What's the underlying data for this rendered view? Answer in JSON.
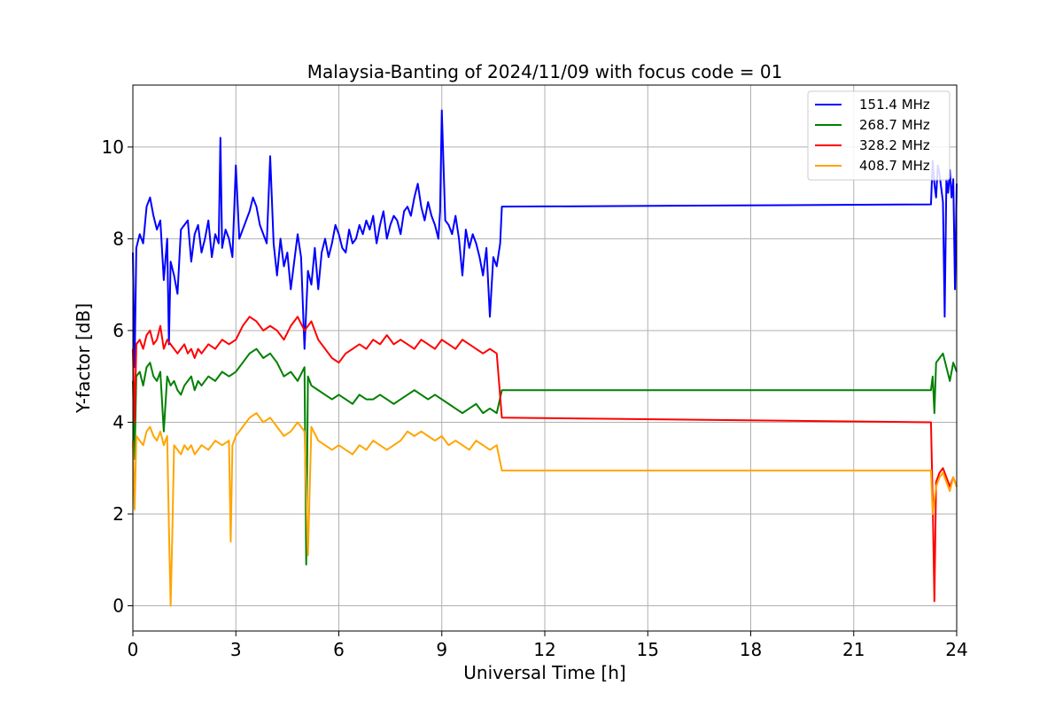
{
  "chart_data": {
    "type": "line",
    "title": "Malaysia-Banting of 2024/11/09 with focus code = 01",
    "xlabel": "Universal Time [h]",
    "ylabel": "Y-factor [dB]",
    "xlim": [
      0,
      24
    ],
    "ylim": [
      -0.55,
      11.35
    ],
    "xticks": [
      0,
      3,
      6,
      9,
      12,
      15,
      18,
      21,
      24
    ],
    "xtick_labels": [
      "0",
      "3",
      "6",
      "9",
      "12",
      "15",
      "18",
      "21",
      "24"
    ],
    "yticks": [
      0,
      2,
      4,
      6,
      8,
      10
    ],
    "ytick_labels": [
      "0",
      "2",
      "4",
      "6",
      "8",
      "10"
    ],
    "grid": true,
    "legend_position": "top-right",
    "series": [
      {
        "name": "151.4 MHz",
        "color": "#0000ff",
        "x": [
          0.0,
          0.05,
          0.1,
          0.2,
          0.3,
          0.4,
          0.5,
          0.6,
          0.7,
          0.8,
          0.9,
          1.0,
          1.05,
          1.1,
          1.2,
          1.3,
          1.4,
          1.5,
          1.6,
          1.7,
          1.8,
          1.9,
          2.0,
          2.1,
          2.2,
          2.3,
          2.4,
          2.5,
          2.55,
          2.6,
          2.7,
          2.8,
          2.9,
          3.0,
          3.1,
          3.2,
          3.3,
          3.4,
          3.5,
          3.6,
          3.7,
          3.8,
          3.9,
          4.0,
          4.1,
          4.2,
          4.3,
          4.4,
          4.5,
          4.6,
          4.7,
          4.8,
          4.9,
          5.0,
          5.1,
          5.2,
          5.3,
          5.4,
          5.5,
          5.6,
          5.7,
          5.8,
          5.9,
          6.0,
          6.1,
          6.2,
          6.3,
          6.4,
          6.5,
          6.6,
          6.7,
          6.8,
          6.9,
          7.0,
          7.1,
          7.2,
          7.3,
          7.4,
          7.5,
          7.6,
          7.7,
          7.8,
          7.9,
          8.0,
          8.1,
          8.2,
          8.3,
          8.4,
          8.5,
          8.6,
          8.7,
          8.8,
          8.9,
          8.95,
          9.0,
          9.1,
          9.2,
          9.3,
          9.4,
          9.5,
          9.6,
          9.7,
          9.8,
          9.9,
          10.0,
          10.1,
          10.2,
          10.3,
          10.4,
          10.5,
          10.6,
          10.7,
          10.75,
          23.25,
          23.3,
          23.35,
          23.4,
          23.45,
          23.5,
          23.55,
          23.6,
          23.65,
          23.7,
          23.75,
          23.8,
          23.85,
          23.9,
          23.95,
          24.0
        ],
        "values": [
          7.7,
          5.2,
          7.8,
          8.1,
          7.9,
          8.7,
          8.9,
          8.5,
          8.2,
          8.4,
          7.1,
          8.0,
          5.7,
          7.5,
          7.2,
          6.8,
          8.2,
          8.3,
          8.4,
          7.5,
          8.1,
          8.3,
          7.7,
          8.0,
          8.4,
          7.6,
          8.1,
          7.9,
          10.2,
          7.8,
          8.2,
          8.0,
          7.6,
          9.6,
          8.0,
          8.2,
          8.4,
          8.6,
          8.9,
          8.7,
          8.3,
          8.1,
          7.9,
          9.8,
          7.9,
          7.2,
          8.0,
          7.4,
          7.7,
          6.9,
          7.5,
          8.1,
          7.6,
          5.6,
          7.3,
          7.0,
          7.8,
          6.9,
          7.7,
          8.0,
          7.6,
          7.9,
          8.3,
          8.1,
          7.8,
          7.7,
          8.2,
          7.9,
          8.0,
          8.3,
          8.1,
          8.4,
          8.2,
          8.5,
          7.9,
          8.3,
          8.6,
          8.0,
          8.3,
          8.5,
          8.4,
          8.1,
          8.6,
          8.7,
          8.5,
          8.9,
          9.2,
          8.7,
          8.4,
          8.8,
          8.5,
          8.3,
          8.0,
          8.6,
          10.8,
          8.4,
          8.3,
          8.1,
          8.5,
          8.0,
          7.2,
          8.2,
          7.8,
          8.1,
          7.9,
          7.6,
          7.2,
          7.8,
          6.3,
          7.6,
          7.4,
          7.9,
          8.7,
          8.75,
          9.7,
          9.2,
          8.9,
          9.6,
          9.4,
          9.1,
          8.8,
          6.3,
          9.3,
          9.0,
          9.5,
          8.9,
          9.3,
          6.9,
          9.2
        ]
      },
      {
        "name": "268.7 MHz",
        "color": "#008000",
        "x": [
          0.0,
          0.05,
          0.1,
          0.2,
          0.3,
          0.4,
          0.5,
          0.6,
          0.7,
          0.8,
          0.9,
          1.0,
          1.1,
          1.2,
          1.3,
          1.4,
          1.5,
          1.6,
          1.7,
          1.8,
          1.9,
          2.0,
          2.2,
          2.4,
          2.6,
          2.8,
          3.0,
          3.2,
          3.4,
          3.6,
          3.8,
          4.0,
          4.2,
          4.4,
          4.6,
          4.8,
          5.0,
          5.05,
          5.1,
          5.2,
          5.4,
          5.6,
          5.8,
          6.0,
          6.2,
          6.4,
          6.6,
          6.8,
          7.0,
          7.2,
          7.4,
          7.6,
          7.8,
          8.0,
          8.2,
          8.4,
          8.6,
          8.8,
          9.0,
          9.2,
          9.4,
          9.6,
          9.8,
          10.0,
          10.2,
          10.4,
          10.6,
          10.75,
          23.25,
          23.3,
          23.35,
          23.4,
          23.5,
          23.6,
          23.7,
          23.8,
          23.9,
          24.0
        ],
        "values": [
          4.9,
          3.2,
          5.0,
          5.1,
          4.8,
          5.2,
          5.3,
          5.0,
          4.9,
          5.1,
          3.8,
          5.0,
          4.8,
          4.9,
          4.7,
          4.6,
          4.8,
          4.9,
          5.0,
          4.7,
          4.9,
          4.8,
          5.0,
          4.9,
          5.1,
          5.0,
          5.1,
          5.3,
          5.5,
          5.6,
          5.4,
          5.5,
          5.3,
          5.0,
          5.1,
          4.9,
          5.2,
          0.9,
          5.0,
          4.8,
          4.7,
          4.6,
          4.5,
          4.6,
          4.5,
          4.4,
          4.6,
          4.5,
          4.5,
          4.6,
          4.5,
          4.4,
          4.5,
          4.6,
          4.7,
          4.6,
          4.5,
          4.6,
          4.5,
          4.4,
          4.3,
          4.2,
          4.3,
          4.4,
          4.2,
          4.3,
          4.2,
          4.7,
          4.7,
          5.0,
          4.2,
          5.3,
          5.4,
          5.5,
          5.2,
          4.9,
          5.3,
          5.1
        ]
      },
      {
        "name": "328.2 MHz",
        "color": "#ff0000",
        "x": [
          0.0,
          0.05,
          0.1,
          0.2,
          0.3,
          0.4,
          0.5,
          0.6,
          0.7,
          0.8,
          0.9,
          1.0,
          1.1,
          1.2,
          1.3,
          1.4,
          1.5,
          1.6,
          1.7,
          1.8,
          1.9,
          2.0,
          2.2,
          2.4,
          2.6,
          2.8,
          3.0,
          3.2,
          3.4,
          3.6,
          3.8,
          4.0,
          4.2,
          4.4,
          4.6,
          4.8,
          5.0,
          5.2,
          5.4,
          5.6,
          5.8,
          6.0,
          6.2,
          6.4,
          6.6,
          6.8,
          7.0,
          7.2,
          7.4,
          7.6,
          7.8,
          8.0,
          8.2,
          8.4,
          8.6,
          8.8,
          9.0,
          9.2,
          9.4,
          9.6,
          9.8,
          10.0,
          10.2,
          10.4,
          10.6,
          10.75,
          23.25,
          23.3,
          23.35,
          23.4,
          23.5,
          23.6,
          23.7,
          23.8,
          23.9,
          24.0
        ],
        "values": [
          5.6,
          4.0,
          5.7,
          5.8,
          5.6,
          5.9,
          6.0,
          5.7,
          5.8,
          6.1,
          5.6,
          5.8,
          5.7,
          5.6,
          5.5,
          5.6,
          5.7,
          5.5,
          5.6,
          5.4,
          5.6,
          5.5,
          5.7,
          5.6,
          5.8,
          5.7,
          5.8,
          6.1,
          6.3,
          6.2,
          6.0,
          6.1,
          6.0,
          5.8,
          6.1,
          6.3,
          6.0,
          6.2,
          5.8,
          5.6,
          5.4,
          5.3,
          5.5,
          5.6,
          5.7,
          5.6,
          5.8,
          5.7,
          5.9,
          5.7,
          5.8,
          5.7,
          5.6,
          5.8,
          5.7,
          5.6,
          5.8,
          5.7,
          5.6,
          5.8,
          5.7,
          5.6,
          5.5,
          5.6,
          5.5,
          4.1,
          4.0,
          2.3,
          0.1,
          2.7,
          2.9,
          3.0,
          2.8,
          2.6,
          2.8,
          2.6
        ]
      },
      {
        "name": "408.7 MHz",
        "color": "#ffa500",
        "x": [
          0.0,
          0.05,
          0.1,
          0.2,
          0.3,
          0.4,
          0.5,
          0.6,
          0.7,
          0.8,
          0.9,
          1.0,
          1.05,
          1.1,
          1.15,
          1.2,
          1.3,
          1.4,
          1.5,
          1.6,
          1.7,
          1.8,
          1.9,
          2.0,
          2.2,
          2.4,
          2.6,
          2.8,
          2.85,
          2.9,
          3.0,
          3.2,
          3.4,
          3.6,
          3.8,
          4.0,
          4.2,
          4.4,
          4.6,
          4.8,
          5.0,
          5.1,
          5.2,
          5.4,
          5.6,
          5.8,
          6.0,
          6.2,
          6.4,
          6.6,
          6.8,
          7.0,
          7.2,
          7.4,
          7.6,
          7.8,
          8.0,
          8.2,
          8.4,
          8.6,
          8.8,
          9.0,
          9.2,
          9.4,
          9.6,
          9.8,
          10.0,
          10.2,
          10.4,
          10.6,
          10.75,
          23.25,
          23.3,
          23.35,
          23.4,
          23.5,
          23.6,
          23.7,
          23.8,
          23.9,
          24.0
        ],
        "values": [
          3.6,
          2.1,
          3.7,
          3.6,
          3.5,
          3.8,
          3.9,
          3.7,
          3.6,
          3.8,
          3.5,
          3.7,
          1.7,
          0.0,
          1.6,
          3.5,
          3.4,
          3.3,
          3.5,
          3.4,
          3.5,
          3.3,
          3.4,
          3.5,
          3.4,
          3.6,
          3.5,
          3.6,
          1.4,
          3.5,
          3.7,
          3.9,
          4.1,
          4.2,
          4.0,
          4.1,
          3.9,
          3.7,
          3.8,
          4.0,
          3.8,
          1.1,
          3.9,
          3.6,
          3.5,
          3.4,
          3.5,
          3.4,
          3.3,
          3.5,
          3.4,
          3.6,
          3.5,
          3.4,
          3.5,
          3.6,
          3.8,
          3.7,
          3.8,
          3.7,
          3.6,
          3.7,
          3.5,
          3.6,
          3.5,
          3.4,
          3.6,
          3.5,
          3.4,
          3.5,
          2.95,
          2.95,
          2.0,
          2.3,
          2.6,
          2.8,
          2.9,
          2.7,
          2.5,
          2.8,
          2.6
        ]
      }
    ]
  }
}
